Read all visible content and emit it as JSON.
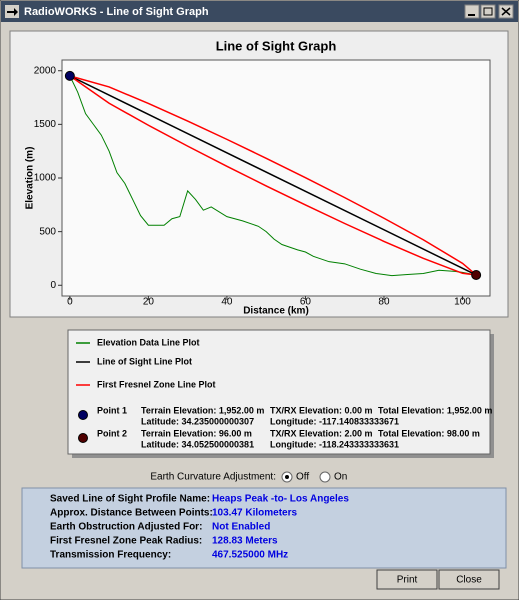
{
  "window": {
    "title": "RadioWORKS - Line of Sight Graph"
  },
  "graph": {
    "type": "line",
    "title": "Line of Sight Graph",
    "x_label": "Distance (km)",
    "y_label": "Elevation (m)",
    "xlim": [
      -2,
      107
    ],
    "ylim": [
      -100,
      2100
    ],
    "xticks": [
      0,
      20,
      40,
      60,
      80,
      100
    ],
    "yticks": [
      0,
      500,
      1000,
      1500,
      2000
    ],
    "series": [
      {
        "name": "Elevation Data Line Plot",
        "color": "#008000",
        "x": [
          0,
          2,
          4,
          6,
          8,
          10,
          12,
          14,
          16,
          18,
          20,
          24,
          26,
          28,
          30,
          32,
          34,
          36,
          40,
          44,
          48,
          50,
          52,
          54,
          58,
          60,
          62,
          66,
          70,
          74,
          78,
          82,
          86,
          90,
          94,
          98,
          100,
          103.47
        ],
        "values": [
          1952,
          1800,
          1600,
          1500,
          1400,
          1250,
          1050,
          950,
          800,
          650,
          560,
          560,
          620,
          640,
          880,
          800,
          700,
          730,
          640,
          600,
          550,
          500,
          430,
          380,
          330,
          310,
          270,
          220,
          200,
          150,
          110,
          90,
          100,
          110,
          140,
          130,
          120,
          96
        ]
      },
      {
        "name": "Line of Sight Line Plot",
        "color": "#000000",
        "x": [
          0,
          103.47
        ],
        "values": [
          1952,
          96
        ]
      },
      {
        "name": "First Fresnel Zone Line Plot",
        "color": "#ff0000",
        "x": [
          0,
          10,
          20,
          30,
          40,
          50,
          60,
          70,
          80,
          90,
          100,
          103.47
        ],
        "values": [
          1952,
          1848.7,
          1695.0,
          1530.8,
          1360.0,
          1184.0,
          1003.0,
          816.9,
          624.9,
          424.4,
          204.7,
          96
        ]
      },
      {
        "color": "#ff0000",
        "x": [
          0,
          10,
          20,
          30,
          40,
          50,
          60,
          70,
          80,
          90,
          100,
          103.47
        ],
        "values": [
          1952,
          1696.5,
          1491.6,
          1297.0,
          1109.0,
          926.4,
          748.6,
          575.9,
          409.1,
          251.0,
          111.9,
          96
        ]
      }
    ],
    "points": [
      {
        "label": "Point 1",
        "x": 0,
        "y": 1952,
        "color": "#000060",
        "terrain": "Terrain Elevation: 1,952.00 m",
        "latitude": "Latitude: 34.235000000307",
        "txrx": "TX/RX Elevation: 0.00 m",
        "total": "Total Elevation: 1,952.00 m",
        "longitude": "Longitude: -117.140833333671"
      },
      {
        "label": "Point 2",
        "x": 103.47,
        "y": 96,
        "color": "#500000",
        "terrain": "Terrain Elevation: 96.00 m",
        "latitude": "Latitude: 34.052500000381",
        "txrx": "TX/RX Elevation: 2.00 m",
        "total": "Total Elevation: 98.00 m",
        "longitude": "Longitude: -118.243333333631"
      }
    ]
  },
  "earth_curvature": {
    "label": "Earth Curvature Adjustment:",
    "options": [
      "Off",
      "On"
    ],
    "selected": 0
  },
  "info": {
    "rows": [
      [
        "Saved Line of Sight Profile Name:",
        "Heaps Peak -to- Los Angeles"
      ],
      [
        "Approx. Distance Between Points:",
        "103.47 Kilometers"
      ],
      [
        "Earth Obstruction Adjusted For:",
        "Not Enabled"
      ],
      [
        "First Fresnel Zone Peak Radius:",
        "128.83 Meters"
      ],
      [
        "Transmission Frequency:",
        "467.525000 MHz"
      ]
    ]
  },
  "buttons": [
    "Print",
    "Close"
  ]
}
